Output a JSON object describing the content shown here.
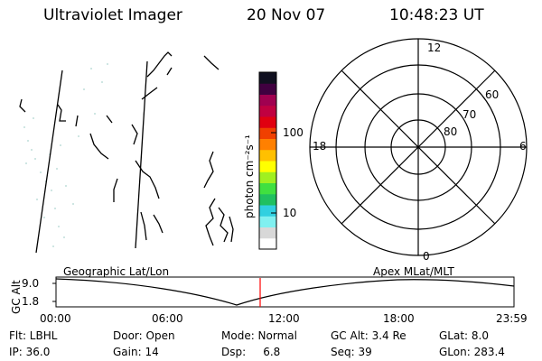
{
  "header": {
    "instrument": "Ultraviolet Imager",
    "date": "20 Nov 07",
    "time": "10:48:23 UT"
  },
  "colorbar": {
    "unit_label": "photon cm⁻²s⁻¹",
    "ticks": [
      "100",
      "10"
    ],
    "colors": [
      "#ffffff",
      "#d8d8d8",
      "#80f0f0",
      "#30d0e0",
      "#20c060",
      "#40e040",
      "#a0f020",
      "#ffff00",
      "#ffc000",
      "#ff8000",
      "#f04000",
      "#e00010",
      "#c00040",
      "#a00050",
      "#400040",
      "#101020"
    ]
  },
  "polar_plot": {
    "mlt_labels": {
      "top": "12",
      "bottom": "0",
      "left": "18",
      "right": "6"
    },
    "lat_labels": [
      "60",
      "70",
      "80"
    ]
  },
  "timeline": {
    "left_title": "Geographic Lat/Lon",
    "right_title": "Apex MLat/MLT",
    "y_axis_label": "GC Alt",
    "y_ticks": [
      "9.0",
      "1.8"
    ],
    "x_ticks": [
      "00:00",
      "06:00",
      "12:00",
      "18:00",
      "23:59"
    ],
    "marker_color": "#ff0000"
  },
  "status": {
    "flt": "Flt: LBHL",
    "door": "Door: Open",
    "mode": "Mode: Normal",
    "gc_alt": "GC Alt: 3.4 Re",
    "glat": "GLat:   8.0",
    "ip": "IP: 36.0",
    "gain": "Gain: 14",
    "dsp": "Dsp:     6.8",
    "seq": "Seq: 39",
    "glon": "GLon: 283.4"
  }
}
